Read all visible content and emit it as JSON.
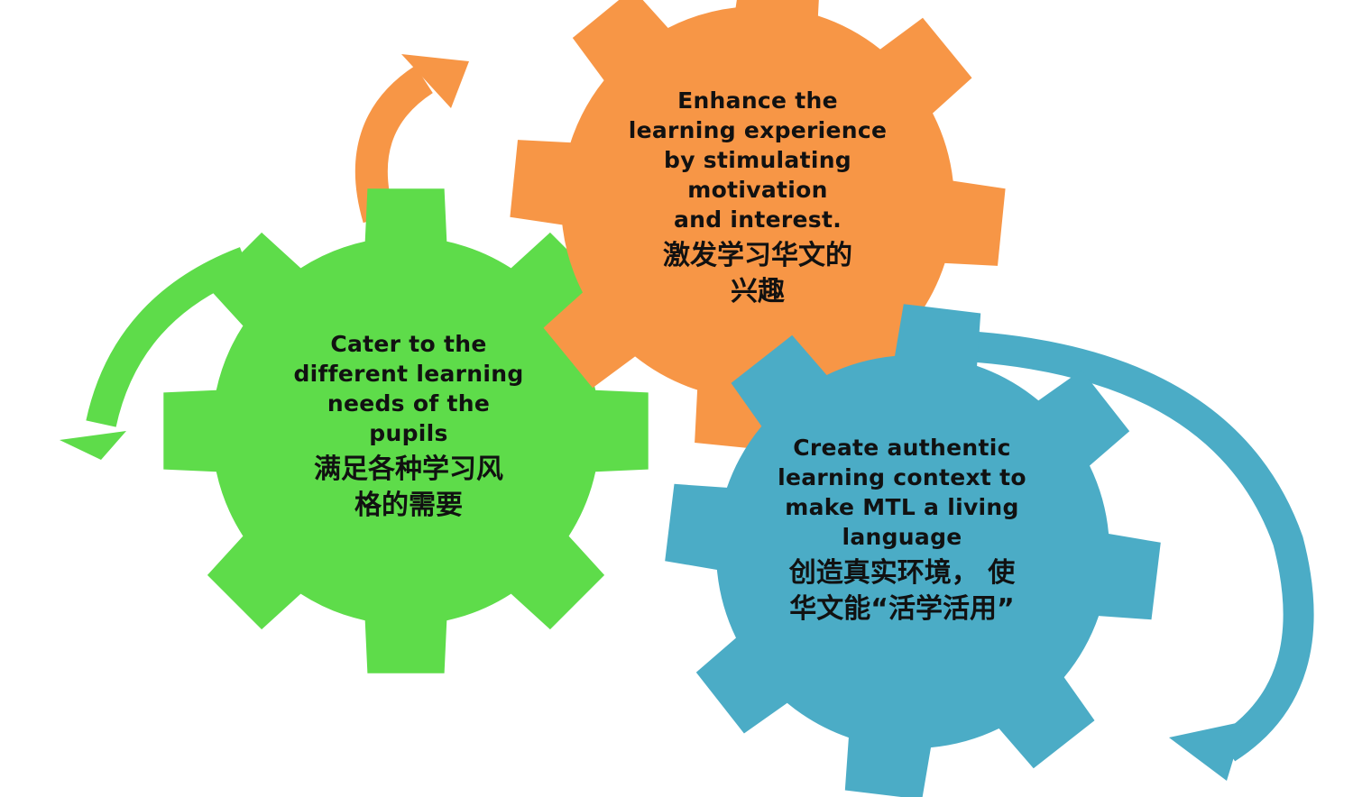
{
  "colors": {
    "orange_gear": "#F79646",
    "green_gear": "#5EDC4A",
    "blue_gear": "#4BACC6",
    "orange_arrow": "#F79646",
    "green_arrow": "#5EDC4A",
    "blue_arrow": "#4BACC6",
    "text": "#111111"
  },
  "gears": {
    "orange": {
      "en": "Enhance the\nlearning  experience\nby stimulating\nmotivation\nand interest.",
      "zh": "激发学习华文的\n兴趣"
    },
    "green": {
      "en": "Cater to the\ndifferent learning\nneeds of the\npupils",
      "zh": "满足各种学习风\n格的需要"
    },
    "blue": {
      "en": "Create authentic\nlearning context to\nmake MTL a living\nlanguage",
      "zh": "创造真实环境， 使\n华文能“活学活用”"
    }
  },
  "arrows": {
    "orange": "curved-arrow-icon",
    "green": "curved-arrow-icon",
    "blue": "curved-arrow-icon"
  }
}
